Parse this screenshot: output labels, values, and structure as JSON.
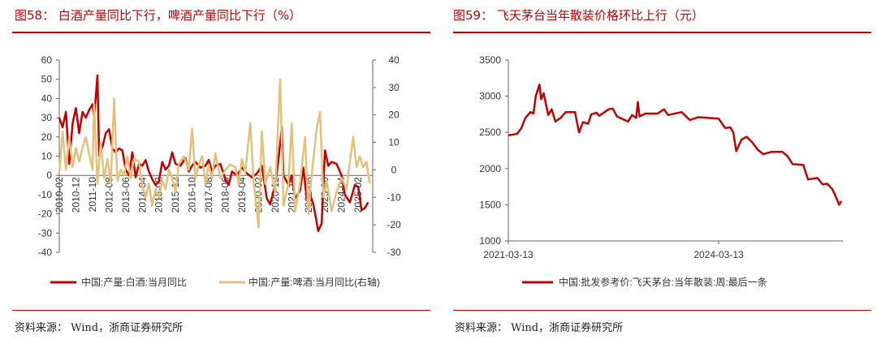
{
  "chart_data": [
    {
      "type": "line",
      "title": "图58：  白酒产量同比下行，啤酒产量同比下行（%）",
      "x_tick_labels": [
        "2010-02",
        "2010-12",
        "2011-10",
        "2012-08",
        "2013-06",
        "2014-04",
        "2015-02",
        "2015-12",
        "2016-10",
        "2017-08",
        "2018-06",
        "2019-04",
        "2020-02",
        "2020-12",
        "2021-10",
        "2022-08",
        "2023-06",
        "2024-04",
        "2025-02"
      ],
      "y_left": {
        "ylim": [
          -40,
          60
        ],
        "ticks": [
          60,
          50,
          40,
          30,
          20,
          10,
          0,
          -10,
          -20,
          -30,
          -40
        ]
      },
      "y_right": {
        "ylim": [
          -30,
          40
        ],
        "ticks": [
          40,
          30,
          20,
          10,
          0,
          -10,
          -20,
          -30
        ]
      },
      "legend_position": "bottom",
      "grid": false,
      "series": [
        {
          "name": "中国:产量:白酒:当月同比",
          "axis": "left",
          "color": "#c00000",
          "dates": [
            "2010-02",
            "2010-04",
            "2010-06",
            "2010-08",
            "2010-10",
            "2010-12",
            "2011-02",
            "2011-04",
            "2011-06",
            "2011-08",
            "2011-10",
            "2011-11",
            "2012-01",
            "2012-02",
            "2012-04",
            "2012-06",
            "2012-08",
            "2012-10",
            "2012-12",
            "2013-02",
            "2013-04",
            "2013-06",
            "2013-08",
            "2013-10",
            "2013-12",
            "2014-02",
            "2014-04",
            "2014-06",
            "2014-08",
            "2014-10",
            "2014-12",
            "2015-02",
            "2015-04",
            "2015-06",
            "2015-08",
            "2015-10",
            "2015-12",
            "2016-03",
            "2016-06",
            "2016-08",
            "2016-10",
            "2016-12",
            "2017-03",
            "2017-06",
            "2017-08",
            "2017-10",
            "2017-12",
            "2018-03",
            "2018-06",
            "2018-08",
            "2018-10",
            "2019-01",
            "2019-04",
            "2019-07",
            "2019-10",
            "2020-01",
            "2020-04",
            "2020-07",
            "2020-09",
            "2020-12",
            "2021-02",
            "2021-04",
            "2021-05",
            "2021-08",
            "2021-10",
            "2021-12",
            "2022-03",
            "2022-05",
            "2022-07",
            "2022-09",
            "2022-11",
            "2023-02",
            "2023-04",
            "2023-06",
            "2023-08",
            "2023-10",
            "2024-01",
            "2024-04",
            "2024-06",
            "2024-09",
            "2024-12",
            "2025-02",
            "2025-04",
            "2025-06",
            "2025-08"
          ],
          "values": [
            30,
            25,
            33,
            6,
            27,
            35,
            22,
            33,
            30,
            34,
            37,
            30,
            52,
            10,
            15,
            22,
            24,
            14,
            12,
            14,
            13,
            3,
            0,
            12,
            -1,
            6,
            5,
            8,
            2,
            -2,
            -5,
            -3,
            7,
            3,
            5,
            12,
            6,
            5,
            9,
            2,
            5,
            7,
            4,
            5,
            8,
            2,
            5,
            6,
            -2,
            -5,
            2,
            0,
            4,
            1,
            -1,
            1,
            5,
            -12,
            -15,
            -5,
            8,
            25,
            0,
            -5,
            0,
            -12,
            -8,
            4,
            -12,
            -10,
            -15,
            -29,
            -25,
            13,
            5,
            7,
            6,
            0,
            -10,
            -14,
            -5,
            -6,
            -18,
            -17,
            -14
          ]
        },
        {
          "name": "中国:产量:啤酒:当月同比(右轴)",
          "axis": "right",
          "color": "#e2c27a",
          "dates": [
            "2010-02",
            "2010-04",
            "2010-06",
            "2010-08",
            "2010-10",
            "2010-12",
            "2011-02",
            "2011-04",
            "2011-06",
            "2011-08",
            "2011-10",
            "2011-11",
            "2012-01",
            "2012-03",
            "2012-05",
            "2012-07",
            "2012-09",
            "2012-11",
            "2013-01",
            "2013-03",
            "2013-05",
            "2013-07",
            "2013-09",
            "2013-11",
            "2014-02",
            "2014-04",
            "2014-06",
            "2014-08",
            "2014-10",
            "2014-12",
            "2015-02",
            "2015-04",
            "2015-06",
            "2015-08",
            "2015-10",
            "2015-12",
            "2016-02",
            "2016-05",
            "2016-08",
            "2016-10",
            "2016-12",
            "2017-02",
            "2017-04",
            "2017-06",
            "2017-08",
            "2017-10",
            "2017-12",
            "2018-03",
            "2018-06",
            "2018-09",
            "2018-12",
            "2019-02",
            "2019-04",
            "2019-06",
            "2019-09",
            "2019-11",
            "2020-02",
            "2020-04",
            "2020-06",
            "2020-09",
            "2020-12",
            "2021-03",
            "2021-05",
            "2021-08",
            "2021-10",
            "2021-12",
            "2022-03",
            "2022-06",
            "2022-08",
            "2022-10",
            "2023-01",
            "2023-03",
            "2023-05",
            "2023-07",
            "2023-10",
            "2024-01",
            "2024-04",
            "2024-07",
            "2024-09",
            "2024-11",
            "2025-01",
            "2025-03",
            "2025-05",
            "2025-07",
            "2025-09"
          ],
          "values": [
            -1,
            14,
            0,
            12,
            1,
            8,
            3,
            8,
            12,
            6,
            0,
            24,
            -5,
            10,
            -3,
            4,
            -5,
            26,
            -4,
            0,
            -2,
            5,
            -3,
            4,
            3,
            -6,
            -10,
            -5,
            -13,
            -7,
            -10,
            -4,
            -7,
            0,
            -3,
            -8,
            2,
            5,
            0,
            15,
            -3,
            2,
            5,
            -5,
            2,
            -3,
            6,
            -3,
            0,
            2,
            1,
            -5,
            4,
            -1,
            17,
            -4,
            -21,
            14,
            -5,
            1,
            -8,
            33,
            -13,
            -5,
            17,
            -15,
            -5,
            12,
            -16,
            -2,
            15,
            21,
            -10,
            -4,
            -15,
            -8,
            -3,
            -7,
            3,
            12,
            1,
            5,
            1,
            3,
            -5
          ]
        }
      ]
    },
    {
      "type": "line",
      "title": "图59：  飞天茅台当年散装价格环比上行（元）",
      "x_tick_labels": [
        "2021-03-13",
        "2024-03-13"
      ],
      "ylim": [
        1000,
        3500
      ],
      "y_ticks": [
        3500,
        3000,
        2500,
        2000,
        1500,
        1000
      ],
      "legend_position": "bottom",
      "grid": false,
      "series": [
        {
          "name": "中国:批发参考价:飞天茅台:当年散装:周:最后一条",
          "color": "#c00000",
          "dates": [
            "2021-03-13",
            "2021-04-28",
            "2021-05-20",
            "2021-06-10",
            "2021-07-06",
            "2021-07-22",
            "2021-08-03",
            "2021-08-22",
            "2021-08-31",
            "2021-09-13",
            "2021-10-07",
            "2021-10-25",
            "2021-11-13",
            "2021-12-10",
            "2022-01-06",
            "2022-02-24",
            "2022-03-16",
            "2022-04-06",
            "2022-05-03",
            "2022-05-19",
            "2022-06-15",
            "2022-06-30",
            "2022-08-18",
            "2022-09-08",
            "2022-09-30",
            "2022-11-27",
            "2022-12-18",
            "2023-01-08",
            "2023-01-17",
            "2023-01-26",
            "2023-02-25",
            "2023-04-30",
            "2023-06-02",
            "2023-06-24",
            "2023-09-02",
            "2023-10-15",
            "2023-11-27",
            "2024-01-24",
            "2024-03-13",
            "2024-04-16",
            "2024-05-13",
            "2024-05-28",
            "2024-06-13",
            "2024-07-10",
            "2024-08-06",
            "2024-09-05",
            "2024-10-03",
            "2024-10-31",
            "2024-12-13",
            "2025-02-08",
            "2025-03-07",
            "2025-04-03",
            "2025-05-28",
            "2025-06-22",
            "2025-08-10",
            "2025-09-06",
            "2025-09-30",
            "2025-10-25",
            "2025-11-09",
            "2025-12-01",
            "2025-12-13"
          ],
          "values": [
            2460,
            2480,
            2560,
            2700,
            2780,
            2760,
            3000,
            3160,
            2960,
            3040,
            2740,
            2820,
            2650,
            2700,
            2780,
            2780,
            2500,
            2640,
            2620,
            2750,
            2770,
            2730,
            2820,
            2830,
            2720,
            2650,
            2740,
            2700,
            2920,
            2720,
            2760,
            2760,
            2820,
            2740,
            2780,
            2670,
            2710,
            2700,
            2690,
            2560,
            2570,
            2500,
            2240,
            2400,
            2440,
            2360,
            2260,
            2200,
            2230,
            2230,
            2170,
            2060,
            2050,
            1850,
            1870,
            1780,
            1790,
            1720,
            1640,
            1500,
            1550
          ]
        }
      ]
    }
  ],
  "source_left": "资料来源：  Wind，浙商证券研究所",
  "source_right": "资料来源：  Wind，浙商证券研究所"
}
